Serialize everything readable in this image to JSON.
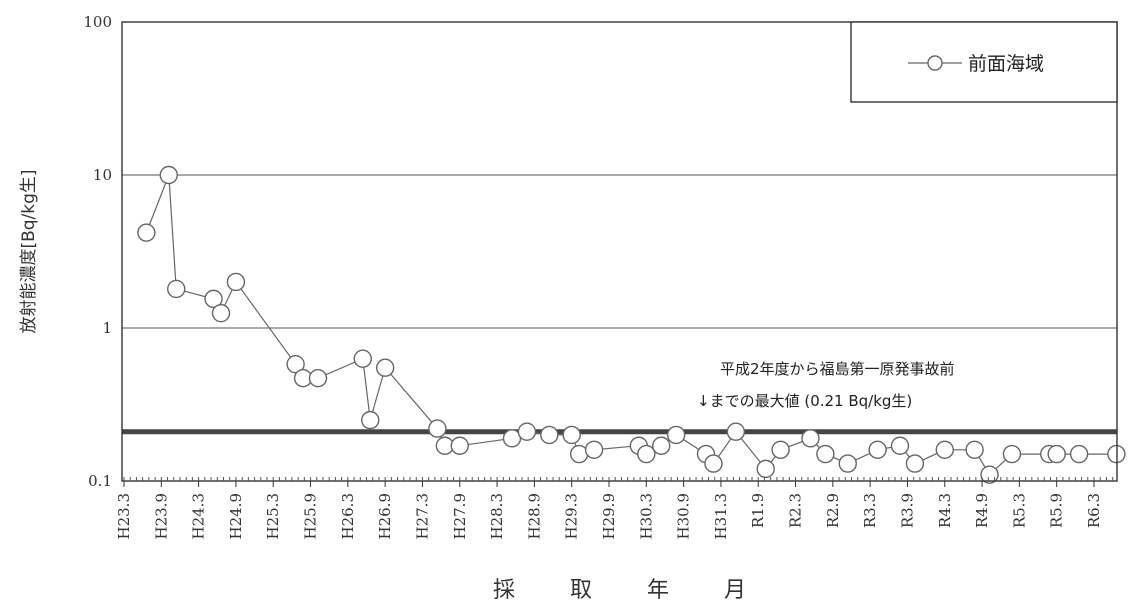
{
  "chart_data": {
    "type": "line",
    "title": "",
    "xlabel": "採 取 年 月",
    "ylabel": "放射能濃度[Bq/kg生]",
    "y_scale": "log",
    "ylim": [
      0.1,
      100
    ],
    "y_ticks": [
      "0.1",
      "1",
      "10",
      "100"
    ],
    "x_ticks": [
      "H23.3",
      "H23.9",
      "H24.3",
      "H24.9",
      "H25.3",
      "H25.9",
      "H26.3",
      "H26.9",
      "H27.3",
      "H27.9",
      "H28.3",
      "H28.9",
      "H29.3",
      "H29.9",
      "H30.3",
      "H30.9",
      "H31.3",
      "R1.9",
      "R2.3",
      "R2.9",
      "R3.3",
      "R3.9",
      "R4.3",
      "R4.9",
      "R5.3",
      "R5.9",
      "R6.3"
    ],
    "grid": "horizontal",
    "legend_position": "top-right",
    "series": [
      {
        "name": "前面海域",
        "marker": "open-circle",
        "color": "#666666",
        "x": [
          0.6,
          1.2,
          1.4,
          2.4,
          2.6,
          3.0,
          4.6,
          4.8,
          5.2,
          6.4,
          6.6,
          7.0,
          8.4,
          8.6,
          9.0,
          10.4,
          10.8,
          11.4,
          12.0,
          12.2,
          12.6,
          13.8,
          14.0,
          14.4,
          14.8,
          15.6,
          15.8,
          16.4,
          17.2,
          17.6,
          18.4,
          18.8,
          19.4,
          20.2,
          20.8,
          21.2,
          22.0,
          22.8,
          23.2,
          23.8,
          24.8,
          25.0,
          25.6,
          26.6
        ],
        "y": [
          4.2,
          10.0,
          1.8,
          1.55,
          1.25,
          2.0,
          0.58,
          0.47,
          0.47,
          0.63,
          0.25,
          0.55,
          0.22,
          0.17,
          0.17,
          0.19,
          0.21,
          0.2,
          0.2,
          0.15,
          0.16,
          0.17,
          0.15,
          0.17,
          0.2,
          0.15,
          0.13,
          0.21,
          0.12,
          0.16,
          0.19,
          0.15,
          0.13,
          0.16,
          0.17,
          0.13,
          0.16,
          0.16,
          0.11,
          0.15,
          0.15,
          0.15,
          0.15,
          0.15
        ]
      }
    ],
    "reference_line": {
      "value": 0.21,
      "label_line1": "平成2年度から福島第一原発事故前",
      "label_line2": "↓までの最大値 (0.21 Bq/kg生)"
    }
  }
}
